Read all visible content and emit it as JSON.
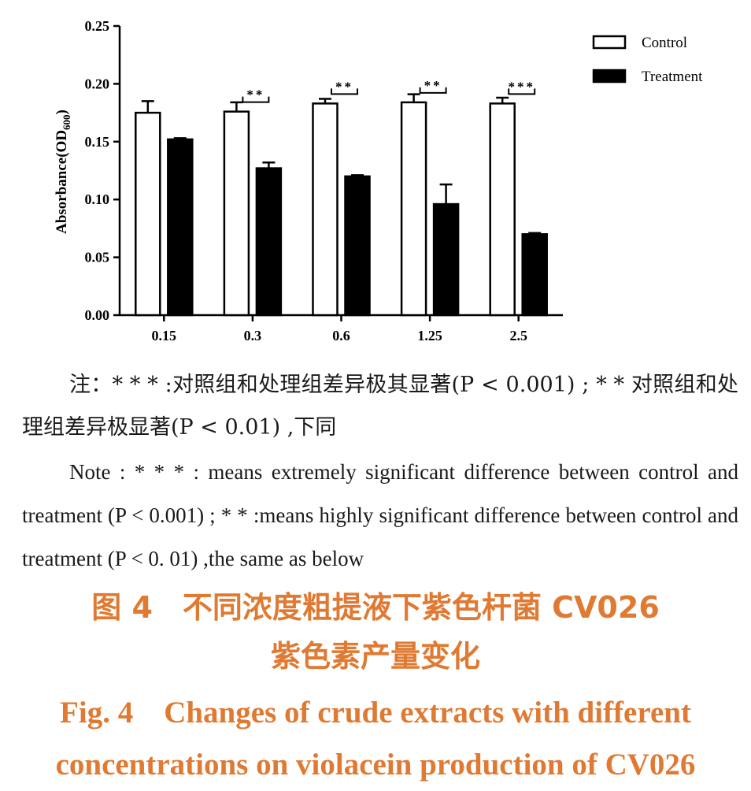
{
  "chart_data": {
    "type": "bar",
    "ylabel": "Absorbance(OD600)",
    "ylabel_main": "Absorbance(OD",
    "ylabel_sub": "600",
    "ylabel_end": ")",
    "categories": [
      "0.15",
      "0.3",
      "0.6",
      "1.25",
      "2.5"
    ],
    "ylim": [
      0,
      0.25
    ],
    "yticks": [
      "0.00",
      "0.05",
      "0.10",
      "0.15",
      "0.20",
      "0.25"
    ],
    "series": [
      {
        "name": "Control",
        "values": [
          0.175,
          0.176,
          0.183,
          0.184,
          0.183
        ],
        "errors": [
          0.01,
          0.008,
          0.004,
          0.007,
          0.005
        ],
        "color": "#ffffff"
      },
      {
        "name": "Treatment",
        "values": [
          0.152,
          0.127,
          0.12,
          0.096,
          0.07
        ],
        "errors": [
          0.001,
          0.005,
          0.001,
          0.017,
          0.001
        ],
        "color": "#000000"
      }
    ],
    "significance": [
      "",
      "**",
      "**",
      "**",
      "***"
    ],
    "legend_position": "top-right",
    "grid": false
  },
  "notes": {
    "zh": "注：* * * :对照组和处理组差异极其显著(P < 0.001) ; * * 对照组和处理组差异极显著(P < 0.01) ,下同",
    "en": "Note : * * * : means extremely significant difference between control and treatment (P < 0.001) ; * * :means highly significant difference between control and treatment (P < 0. 01) ,the same as below"
  },
  "caption": {
    "zh_line1": "图 4　不同浓度粗提液下紫色杆菌 CV026",
    "zh_line2": "紫色素产量变化",
    "en_line1": "Fig. 4　Changes of crude extracts with different",
    "en_line2": "concentrations on violacein production of CV026"
  }
}
